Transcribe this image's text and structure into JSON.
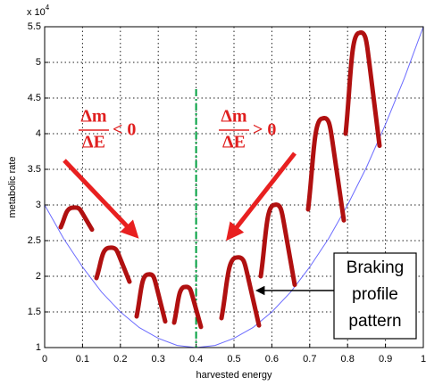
{
  "chart_data": {
    "type": "line",
    "x_label": "harvested energy",
    "y_label": "metabolic rate",
    "y_multiplier": {
      "base": "x 10",
      "exponent": "4"
    },
    "xlim": [
      0,
      1
    ],
    "ylim": [
      1,
      5.5
    ],
    "xticks": [
      0,
      0.1,
      0.2,
      0.3,
      0.4,
      0.5,
      0.6,
      0.7,
      0.8,
      0.9,
      1
    ],
    "yticks": [
      1,
      1.5,
      2,
      2.5,
      3,
      3.5,
      4,
      4.5,
      5,
      5.5
    ],
    "grid": true,
    "series": [
      {
        "color": "#6b6bff",
        "x": [
          0,
          0.05,
          0.1,
          0.15,
          0.2,
          0.25,
          0.3,
          0.35,
          0.4,
          0.45,
          0.5,
          0.55,
          0.6,
          0.65,
          0.7,
          0.75,
          0.8,
          0.85,
          0.9,
          0.95,
          1
        ],
        "values": [
          3,
          2.53,
          2.13,
          1.78,
          1.5,
          1.28,
          1.13,
          1.03,
          1,
          1.03,
          1.13,
          1.28,
          1.5,
          1.78,
          2.13,
          2.53,
          3,
          3.53,
          4.13,
          4.78,
          5.5
        ]
      }
    ],
    "reference_line": {
      "x": 0.4,
      "color": "#00a040"
    },
    "annotations": [
      {
        "numerator": "Δm",
        "denominator": "ΔE",
        "relation": "< 0"
      },
      {
        "numerator": "Δm",
        "denominator": "ΔE",
        "relation": "> 0"
      }
    ],
    "callout": [
      "Braking",
      "profile",
      "pattern"
    ]
  }
}
